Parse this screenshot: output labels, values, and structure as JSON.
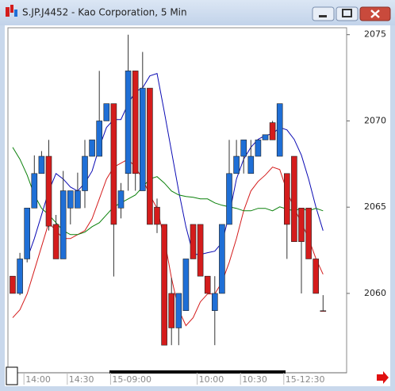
{
  "chart_data": {
    "type": "candlestick",
    "title": "S.JP.J4452 - Kao Corporation, 5 Min",
    "categories": [
      null,
      null,
      "14:00",
      null,
      null,
      null,
      null,
      null,
      "14:30",
      null,
      null,
      null,
      null,
      null,
      "15-09:00",
      null,
      null,
      null,
      null,
      null,
      null,
      null,
      null,
      null,
      null,
      null,
      "10:00",
      null,
      null,
      null,
      null,
      null,
      "10:30",
      null,
      null,
      null,
      null,
      null,
      "15-12:30",
      null,
      null,
      null,
      null,
      null
    ],
    "open": [
      2061,
      2060,
      2062,
      2064.95,
      2066.95,
      2067.95,
      2064,
      2062,
      2064.95,
      2064.95,
      2065.95,
      2067.95,
      2067.95,
      2070,
      2071,
      2064.95,
      2066.95,
      2072.9,
      2065.95,
      2071.9,
      2065,
      2064,
      2060,
      2058,
      2059,
      2064,
      2064,
      2061,
      2059,
      2060,
      2064,
      2066.95,
      2067.95,
      2066.95,
      2067.95,
      2068.9,
      2069.9,
      2067.95,
      2066.95,
      2067.95,
      2064.95,
      2064.95,
      2062,
      2059
    ],
    "high": [
      2061,
      2062.35,
      2064.95,
      2068,
      2068.25,
      2068.9,
      2064.55,
      2067.1,
      2065.95,
      2067,
      2068.9,
      2068.9,
      2072.9,
      2071,
      2071,
      2066.4,
      2075,
      2072.9,
      2074,
      2071.9,
      2065.5,
      2064,
      2060.9,
      2060,
      2062,
      2064,
      2064,
      2061,
      2061,
      2064,
      2068.9,
      2068.9,
      2068.9,
      2068.9,
      2068.9,
      2069.2,
      2070,
      2071,
      2066.95,
      2067.95,
      2064.95,
      2064.95,
      2062,
      2059.9
    ],
    "low": [
      2060,
      2059.9,
      2061.8,
      2064.95,
      2066.95,
      2063.65,
      2062,
      2062,
      2064,
      2064.95,
      2064.95,
      2067.95,
      2067.95,
      2070,
      2060.98,
      2064.35,
      2065.95,
      2065.95,
      2065.95,
      2064,
      2063.5,
      2057,
      2057,
      2057,
      2059,
      2062,
      2061,
      2060,
      2057,
      2060,
      2064,
      2066.95,
      2066.95,
      2066.95,
      2067.95,
      2068.9,
      2068.9,
      2067.95,
      2062,
      2063,
      2060,
      2062,
      2060,
      2059
    ],
    "close": [
      2060,
      2062,
      2064.95,
      2066.95,
      2067.95,
      2063.9,
      2062,
      2065.95,
      2065.95,
      2065.95,
      2067.95,
      2068.9,
      2070,
      2071,
      2064,
      2065.95,
      2072.9,
      2066.95,
      2071.9,
      2064,
      2064,
      2057,
      2058,
      2060,
      2062,
      2062,
      2061,
      2060,
      2060,
      2064,
      2066.95,
      2067.95,
      2068.9,
      2067.95,
      2068.9,
      2069.2,
      2068.9,
      2071,
      2064,
      2063,
      2063,
      2062,
      2060,
      2059
    ],
    "up_color": "#1f6fd6",
    "down_color": "#d41c1c",
    "lines": [
      {
        "color": "#0a0ab4",
        "values": [
          null,
          null,
          2062.0,
          2063.18,
          2064.56,
          2065.94,
          2066.95,
          2066.63,
          2066.17,
          2065.94,
          2066.4,
          2067.09,
          2068.47,
          2069.62,
          2070.08,
          2070.08,
          2071.0,
          2071.69,
          2071.92,
          2072.61,
          2072.75,
          2070.54,
          2068.24,
          2065.94,
          2063.87,
          2062.26,
          2062.26,
          2062.36,
          2062.45,
          2062.95,
          2064.56,
          2066.63,
          2067.78,
          2068.47,
          2068.93,
          2069.16,
          2069.25,
          2069.62,
          2069.48,
          2068.93,
          2068.01,
          2066.63,
          2065.02,
          2063.64
        ]
      },
      {
        "color": "#d41c1c",
        "values": [
          2058.59,
          2059.05,
          2059.97,
          2061.34,
          2062.72,
          2064.1,
          2063.64,
          2063.18,
          2063.18,
          2063.41,
          2063.64,
          2064.33,
          2065.48,
          2066.63,
          2067.32,
          2067.55,
          2067.78,
          2067.32,
          2066.63,
          2065.71,
          2064.93,
          2063.18,
          2060.89,
          2059.05,
          2058.13,
          2058.59,
          2059.51,
          2059.97,
          2059.97,
          2060.66,
          2061.8,
          2063.18,
          2064.79,
          2065.94,
          2066.49,
          2066.86,
          2067.32,
          2067.18,
          2065.94,
          2064.93,
          2064.1,
          2063.18,
          2062.03,
          2061.11
        ]
      },
      {
        "color": "#0a800a",
        "values": [
          2068.47,
          2067.78,
          2066.86,
          2065.71,
          2064.93,
          2064.56,
          2064.1,
          2063.64,
          2063.41,
          2063.41,
          2063.55,
          2063.87,
          2064.1,
          2064.56,
          2065.02,
          2065.25,
          2065.48,
          2065.71,
          2066.17,
          2066.63,
          2066.77,
          2066.4,
          2065.94,
          2065.71,
          2065.62,
          2065.57,
          2065.48,
          2065.48,
          2065.25,
          2065.11,
          2065.02,
          2064.93,
          2064.79,
          2064.79,
          2064.93,
          2064.93,
          2064.79,
          2065.02,
          2064.89,
          2064.79,
          2064.93,
          2064.79,
          2064.93,
          2064.79
        ]
      }
    ],
    "ylim": [
      2055.4,
      2075.4
    ],
    "yticks": [
      2060,
      2065,
      2070,
      2075
    ]
  }
}
